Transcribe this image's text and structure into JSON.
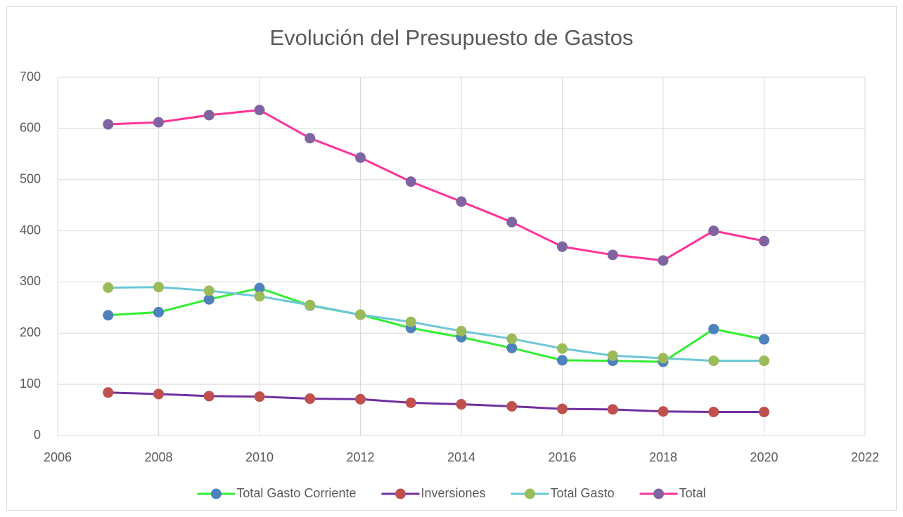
{
  "chart_data": {
    "type": "line",
    "title": "Evolución del Presupuesto de Gastos",
    "x": [
      2007,
      2008,
      2009,
      2010,
      2011,
      2012,
      2013,
      2014,
      2015,
      2016,
      2017,
      2018,
      2019,
      2020
    ],
    "xlim": [
      2006,
      2022
    ],
    "xticks": [
      2006,
      2008,
      2010,
      2012,
      2014,
      2016,
      2018,
      2020,
      2022
    ],
    "ylim": [
      0,
      700
    ],
    "yticks": [
      0,
      100,
      200,
      300,
      400,
      500,
      600,
      700
    ],
    "grid": true,
    "legend": "bottom",
    "series": [
      {
        "name": "Total Gasto Corriente",
        "color": "#33ee33",
        "marker_color": "#4f81bd",
        "values": [
          235,
          241,
          266,
          288,
          254,
          236,
          210,
          192,
          171,
          147,
          146,
          144,
          208,
          188
        ]
      },
      {
        "name": "Inversiones",
        "color": "#7030a0",
        "marker_color": "#c0504d",
        "values": [
          84,
          81,
          77,
          76,
          72,
          71,
          64,
          61,
          57,
          52,
          51,
          47,
          46,
          46
        ]
      },
      {
        "name": "Total Gasto",
        "color": "#6cc7d7",
        "marker_color": "#9bbb59",
        "values": [
          289,
          290,
          283,
          272,
          255,
          236,
          222,
          204,
          189,
          170,
          156,
          151,
          146,
          146
        ]
      },
      {
        "name": "Total",
        "color": "#ff3399",
        "marker_color": "#8064a2",
        "values": [
          608,
          612,
          626,
          636,
          581,
          543,
          496,
          457,
          417,
          369,
          353,
          342,
          400,
          380
        ]
      }
    ]
  }
}
